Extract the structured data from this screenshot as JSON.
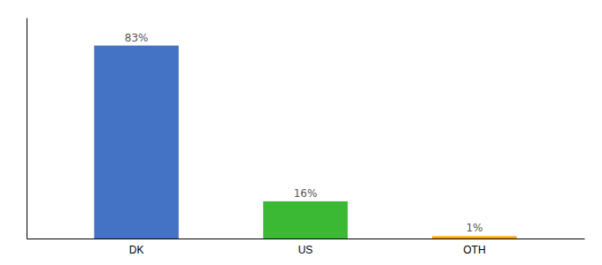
{
  "chart_data": {
    "type": "bar",
    "categories": [
      "DK",
      "US",
      "OTH"
    ],
    "values": [
      83,
      16,
      1
    ],
    "value_labels": [
      "83%",
      "16%",
      "1%"
    ],
    "colors": [
      "#4472C4",
      "#3CB934",
      "#FFA500"
    ],
    "ylim": [
      0,
      95
    ],
    "data_labels": true,
    "tick_labels": "x"
  }
}
